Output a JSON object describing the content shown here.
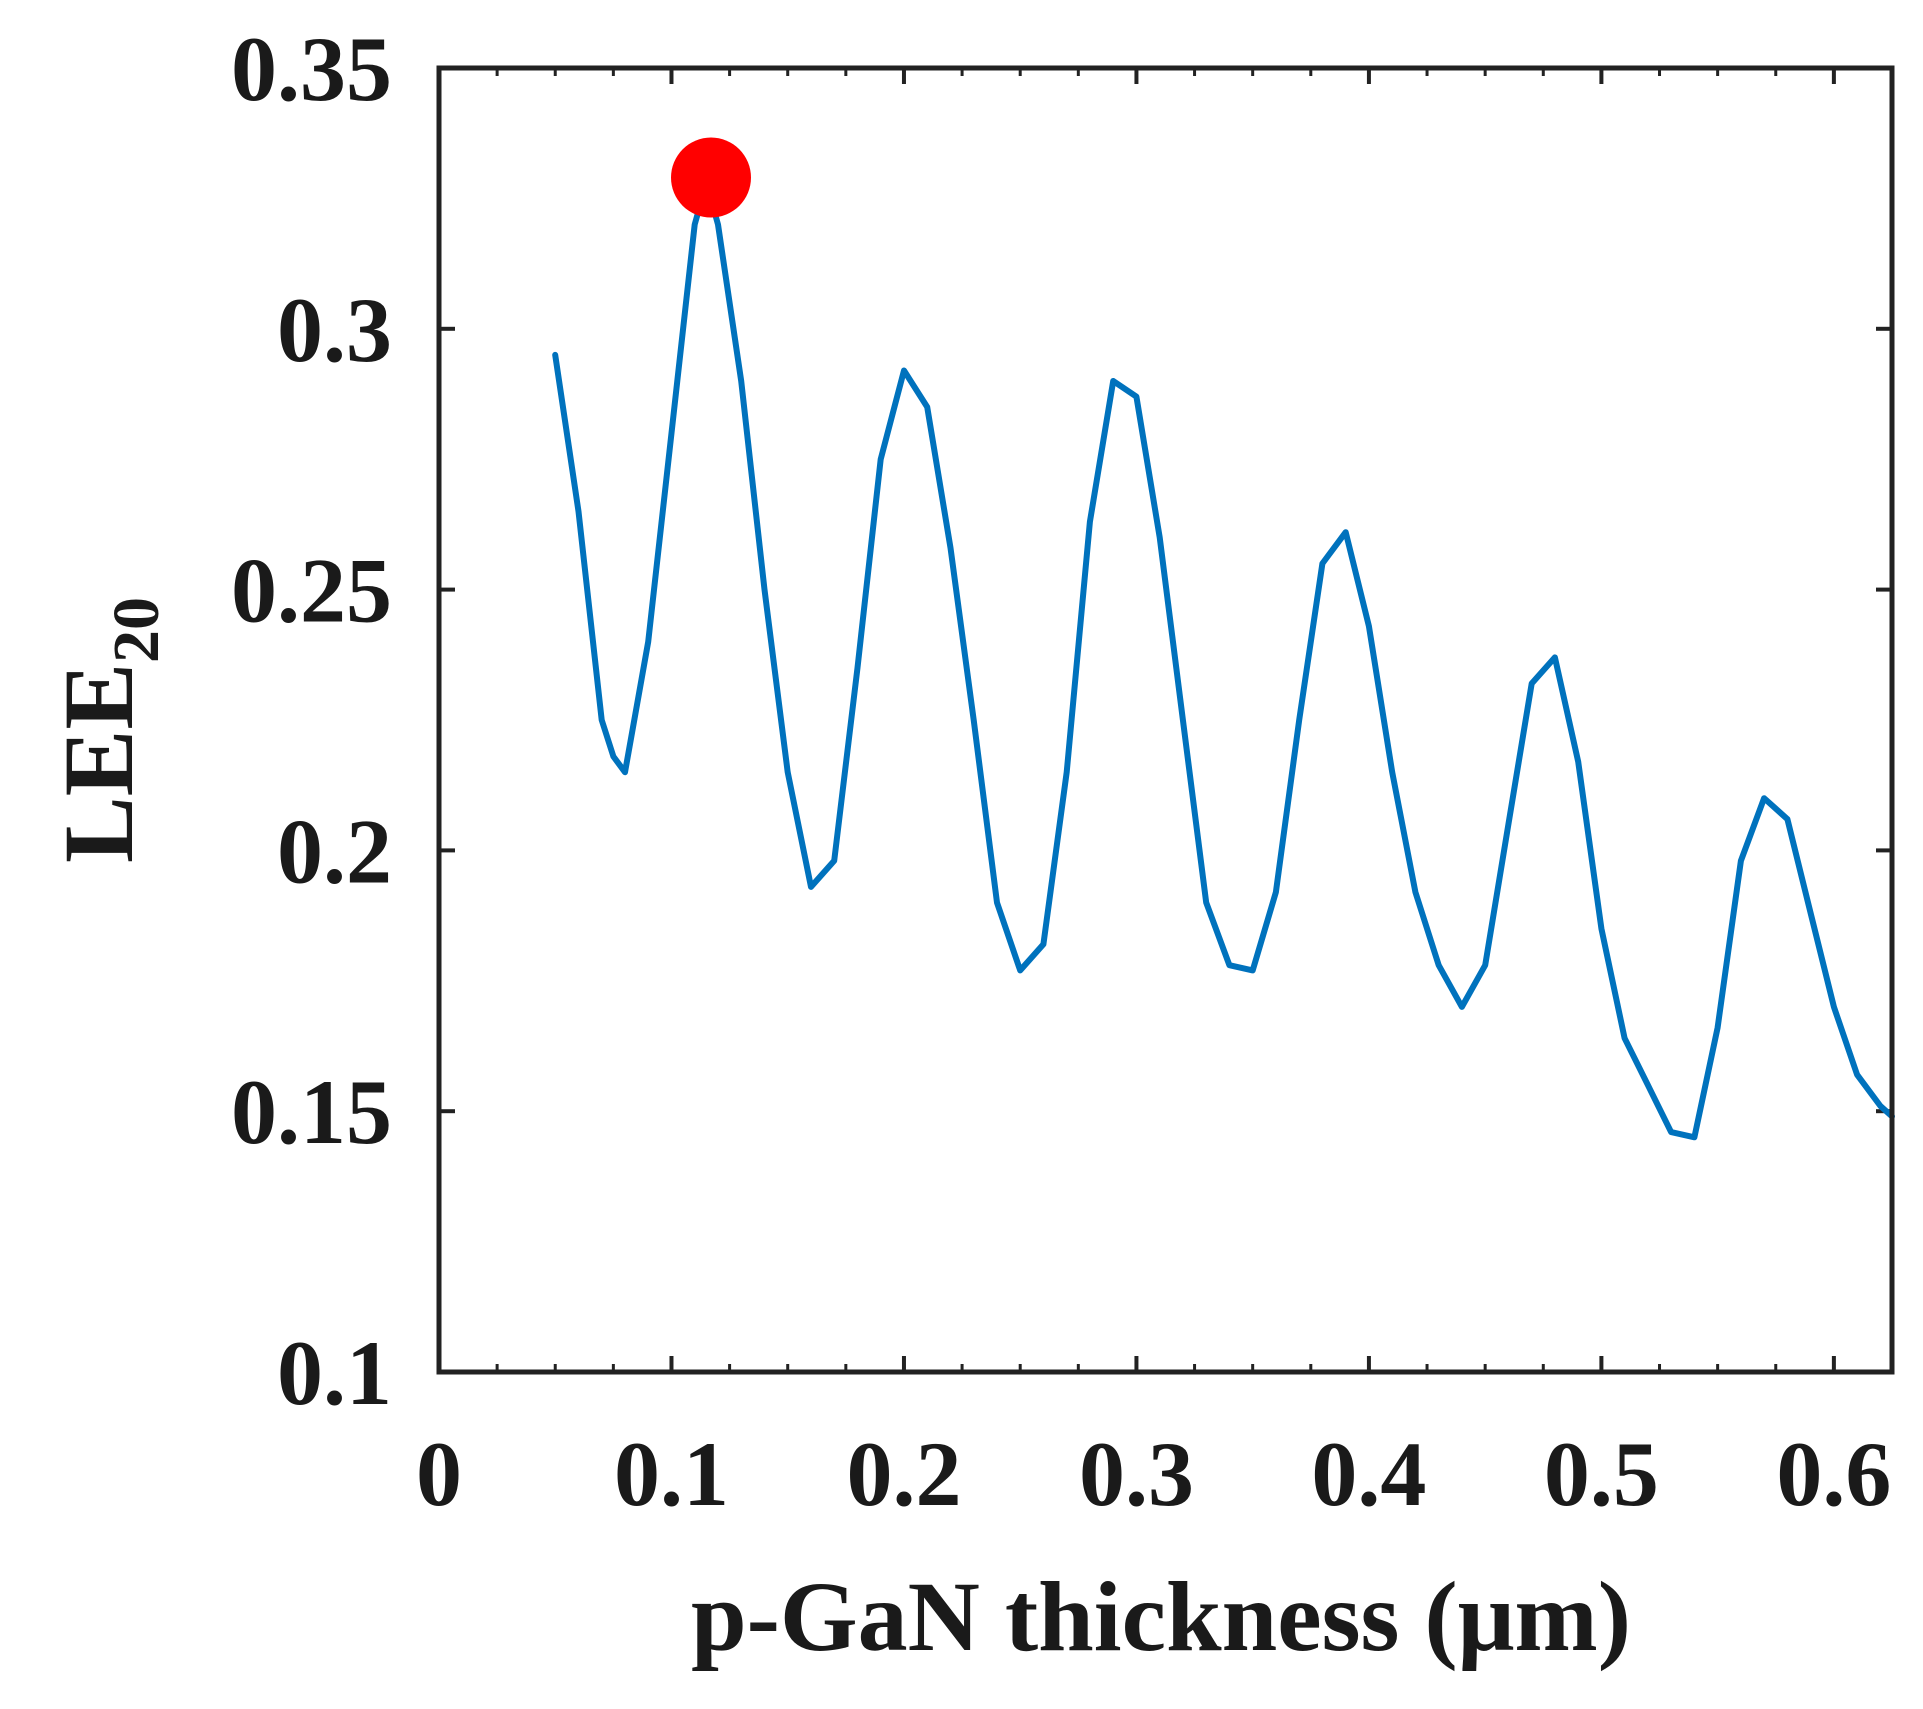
{
  "chart_data": {
    "type": "line",
    "title": "",
    "xlabel": "p-GaN thickness (μm)",
    "ylabel_main": "LEE",
    "ylabel_sub": "20",
    "xlim": [
      0,
      0.625
    ],
    "ylim": [
      0.1,
      0.35
    ],
    "xticks": [
      0,
      0.1,
      0.2,
      0.3,
      0.4,
      0.5,
      0.6
    ],
    "xtick_labels": [
      "0",
      "0.1",
      "0.2",
      "0.3",
      "0.4",
      "0.5",
      "0.6"
    ],
    "yticks": [
      0.1,
      0.15,
      0.2,
      0.25,
      0.3,
      0.35
    ],
    "ytick_labels": [
      "0.1",
      "0.15",
      "0.2",
      "0.25",
      "0.3",
      "0.35"
    ],
    "grid": false,
    "series": [
      {
        "name": "LEE20",
        "color": "#0072bd",
        "x": [
          0.05,
          0.06,
          0.07,
          0.075,
          0.08,
          0.09,
          0.1,
          0.11,
          0.115,
          0.12,
          0.13,
          0.14,
          0.15,
          0.16,
          0.17,
          0.18,
          0.19,
          0.2,
          0.21,
          0.22,
          0.23,
          0.24,
          0.25,
          0.26,
          0.27,
          0.28,
          0.29,
          0.3,
          0.31,
          0.32,
          0.33,
          0.34,
          0.35,
          0.36,
          0.37,
          0.38,
          0.39,
          0.4,
          0.41,
          0.42,
          0.43,
          0.44,
          0.45,
          0.46,
          0.47,
          0.48,
          0.49,
          0.5,
          0.51,
          0.52,
          0.53,
          0.54,
          0.55,
          0.56,
          0.57,
          0.58,
          0.59,
          0.6,
          0.61,
          0.62,
          0.625
        ],
        "values": [
          0.295,
          0.265,
          0.225,
          0.218,
          0.215,
          0.24,
          0.28,
          0.32,
          0.328,
          0.32,
          0.29,
          0.25,
          0.215,
          0.193,
          0.198,
          0.235,
          0.275,
          0.292,
          0.285,
          0.258,
          0.225,
          0.19,
          0.177,
          0.182,
          0.215,
          0.263,
          0.29,
          0.287,
          0.26,
          0.225,
          0.19,
          0.178,
          0.177,
          0.192,
          0.225,
          0.255,
          0.261,
          0.243,
          0.215,
          0.192,
          0.178,
          0.17,
          0.178,
          0.205,
          0.232,
          0.237,
          0.217,
          0.185,
          0.164,
          0.155,
          0.146,
          0.145,
          0.166,
          0.198,
          0.21,
          0.206,
          0.188,
          0.17,
          0.157,
          0.151,
          0.149
        ]
      }
    ],
    "highlight": {
      "x": 0.117,
      "y": 0.329,
      "color": "#ff0000"
    },
    "frame_color": "#222222"
  }
}
